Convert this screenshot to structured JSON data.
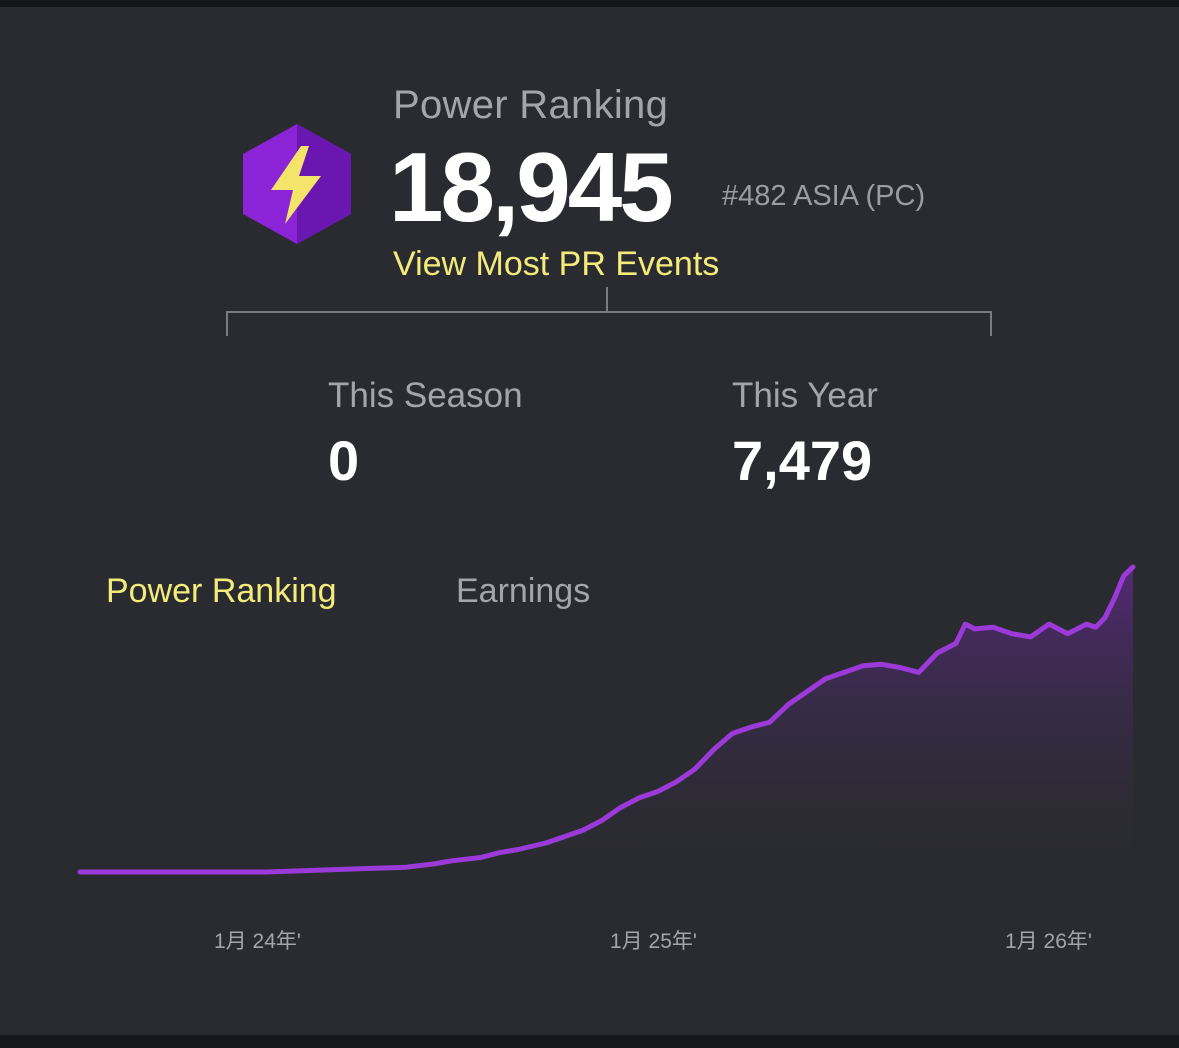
{
  "header": {
    "label": "Power Ranking",
    "value": "18,945",
    "rank": "#482 ASIA (PC)",
    "link": "View Most PR Events",
    "icon": "lightning-hexagon-icon"
  },
  "stats": [
    {
      "label": "This Season",
      "value": "0"
    },
    {
      "label": "This Year",
      "value": "7,479"
    }
  ],
  "tabs": [
    {
      "label": "Power Ranking",
      "active": true
    },
    {
      "label": "Earnings",
      "active": false
    }
  ],
  "colors": {
    "accent": "#f3eb7a",
    "line": "#9b3ad8",
    "icon_purple": "#7a1fc0",
    "bolt": "#f4e56a"
  },
  "chart_data": {
    "type": "area",
    "x_ticks": [
      "1月 24年'",
      "1月 25年'",
      "1月 26年'"
    ],
    "x": [
      0,
      50,
      100,
      150,
      200,
      250,
      300,
      350,
      380,
      400,
      430,
      450,
      470,
      500,
      520,
      540,
      560,
      580,
      600,
      620,
      640,
      660,
      680,
      700,
      720,
      740,
      760,
      780,
      800,
      820,
      840,
      860,
      880,
      900,
      920,
      940,
      950,
      960,
      980,
      1000,
      1020,
      1040,
      1060,
      1080,
      1090,
      1100,
      1110,
      1120,
      1130
    ],
    "values": [
      0,
      0,
      0,
      0,
      0,
      100,
      200,
      300,
      500,
      700,
      900,
      1200,
      1400,
      1800,
      2200,
      2600,
      3200,
      4000,
      4600,
      5000,
      5600,
      6400,
      7600,
      8600,
      9000,
      9300,
      10400,
      11200,
      12000,
      12400,
      12800,
      12900,
      12700,
      12400,
      13600,
      14200,
      15400,
      15100,
      15200,
      14800,
      14600,
      15400,
      14800,
      15400,
      15200,
      15800,
      17000,
      18400,
      18945
    ],
    "ylim": [
      0,
      20000
    ],
    "grid": false
  }
}
